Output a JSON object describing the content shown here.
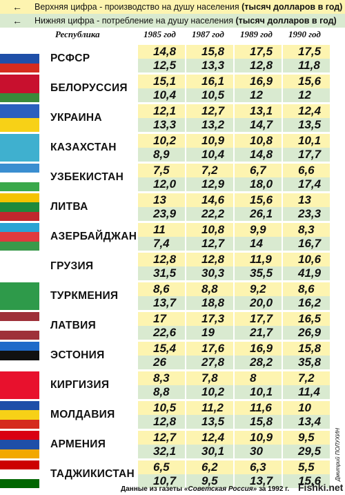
{
  "legend": {
    "top_arrow": "←",
    "top_text": "Верхняя цифра - производство на душу населения ",
    "top_bold": "(тысяч долларов в год)",
    "bottom_arrow": "←",
    "bottom_text": "Нижняя цифра - потребление на душу населения ",
    "bottom_bold": "(тысяч долларов в год)"
  },
  "header": {
    "republic": "Республика",
    "years": [
      "1985 год",
      "1987 год",
      "1989 год",
      "1990 год"
    ]
  },
  "rows": [
    {
      "name": "РСФСР",
      "top": [
        "14,8",
        "15,8",
        "17,5",
        "17,5"
      ],
      "bottom": [
        "12,5",
        "13,3",
        "12,8",
        "11,8"
      ],
      "flag": [
        "#ffffff",
        "#1f4fa8",
        "#d52b1e"
      ],
      "flag_icon": "russia-flag"
    },
    {
      "name": "БЕЛОРУССИЯ",
      "top": [
        "15,1",
        "16,1",
        "16,9",
        "15,6"
      ],
      "bottom": [
        "10,4",
        "10,5",
        "12",
        "12"
      ],
      "flag": [
        "#c8102e",
        "#c8102e",
        "#3a8a3a"
      ],
      "flag_icon": "belarus-flag"
    },
    {
      "name": "УКРАИНА",
      "top": [
        "12,1",
        "12,7",
        "13,1",
        "12,4"
      ],
      "bottom": [
        "13,3",
        "13,2",
        "14,7",
        "13,5"
      ],
      "flag": [
        "#2b5fbe",
        "#f7d117"
      ],
      "flag_icon": "ukraine-flag"
    },
    {
      "name": "КАЗАХСТАН",
      "top": [
        "10,2",
        "10,9",
        "10,8",
        "10,1"
      ],
      "bottom": [
        "8,9",
        "10,4",
        "14,8",
        "17,7"
      ],
      "flag": [
        "#3fb0cf"
      ],
      "flag_icon": "kazakhstan-flag"
    },
    {
      "name": "УЗБЕКИСТАН",
      "top": [
        "7,5",
        "7,2",
        "6,7",
        "6,6"
      ],
      "bottom": [
        "12,0",
        "12,9",
        "18,0",
        "17,4"
      ],
      "flag": [
        "#3a8ed0",
        "#ffffff",
        "#3aa84a"
      ],
      "flag_icon": "uzbekistan-flag"
    },
    {
      "name": "ЛИТВА",
      "top": [
        "13",
        "14,6",
        "15,6",
        "13"
      ],
      "bottom": [
        "23,9",
        "22,2",
        "26,1",
        "23,3"
      ],
      "flag": [
        "#f4c300",
        "#1e8a3c",
        "#c1272d"
      ],
      "flag_icon": "lithuania-flag"
    },
    {
      "name": "АЗЕРБАЙДЖАН",
      "top": [
        "11",
        "10,8",
        "9,9",
        "8,3"
      ],
      "bottom": [
        "7,4",
        "12,7",
        "14",
        "16,7"
      ],
      "flag": [
        "#2aa4d4",
        "#e03a3e",
        "#3a9a4a"
      ],
      "flag_icon": "azerbaijan-flag"
    },
    {
      "name": "ГРУЗИЯ",
      "top": [
        "12,8",
        "12,8",
        "11,9",
        "10,6"
      ],
      "bottom": [
        "31,5",
        "30,3",
        "35,5",
        "41,9"
      ],
      "flag": [
        "#ffffff"
      ],
      "flag_icon": "georgia-flag"
    },
    {
      "name": "ТУРКМЕНИЯ",
      "top": [
        "8,6",
        "8,8",
        "9,2",
        "8,6"
      ],
      "bottom": [
        "13,7",
        "18,8",
        "20,0",
        "16,2"
      ],
      "flag": [
        "#2e9a4a"
      ],
      "flag_icon": "turkmenistan-flag"
    },
    {
      "name": "ЛАТВИЯ",
      "top": [
        "17",
        "17,3",
        "17,7",
        "16,5"
      ],
      "bottom": [
        "22,6",
        "19",
        "21,7",
        "26,9"
      ],
      "flag": [
        "#9e3039",
        "#ffffff",
        "#9e3039"
      ],
      "flag_icon": "latvia-flag"
    },
    {
      "name": "ЭСТОНИЯ",
      "top": [
        "15,4",
        "17,6",
        "16,9",
        "15,8"
      ],
      "bottom": [
        "26",
        "27,8",
        "28,2",
        "35,8"
      ],
      "flag": [
        "#1f6ac9",
        "#111111",
        "#ffffff"
      ],
      "flag_icon": "estonia-flag"
    },
    {
      "name": "КИРГИЗИЯ",
      "top": [
        "8,3",
        "7,8",
        "8",
        "7,2"
      ],
      "bottom": [
        "8,8",
        "10,2",
        "10,1",
        "11,4"
      ],
      "flag": [
        "#e8112d"
      ],
      "flag_icon": "kyrgyzstan-flag"
    },
    {
      "name": "МОЛДАВИЯ",
      "top": [
        "10,5",
        "11,2",
        "11,6",
        "10"
      ],
      "bottom": [
        "12,8",
        "13,5",
        "15,8",
        "13,4"
      ],
      "flag": [
        "#1f4fa8",
        "#f7d117",
        "#d52b1e"
      ],
      "flag_icon": "moldova-flag"
    },
    {
      "name": "АРМЕНИЯ",
      "top": [
        "12,7",
        "12,4",
        "10,9",
        "9,5"
      ],
      "bottom": [
        "32,1",
        "30,1",
        "30",
        "29,5"
      ],
      "flag": [
        "#d90012",
        "#1f4fa8",
        "#f2a800"
      ],
      "flag_icon": "armenia-flag"
    },
    {
      "name": "ТАДЖИКИСТАН",
      "top": [
        "6,5",
        "6,2",
        "6,3",
        "5,5"
      ],
      "bottom": [
        "10,7",
        "9,5",
        "13,7",
        "15,6"
      ],
      "flag": [
        "#cc0000",
        "#ffffff",
        "#006600"
      ],
      "flag_icon": "tajikistan-flag"
    }
  ],
  "credit": "Дмитрий ПОЛУХИН",
  "footer": {
    "prefix": "Данные из газеты ",
    "paper": "«Советская Россия»",
    "suffix": " за 1992 г."
  },
  "watermark": "Fishki.net"
}
